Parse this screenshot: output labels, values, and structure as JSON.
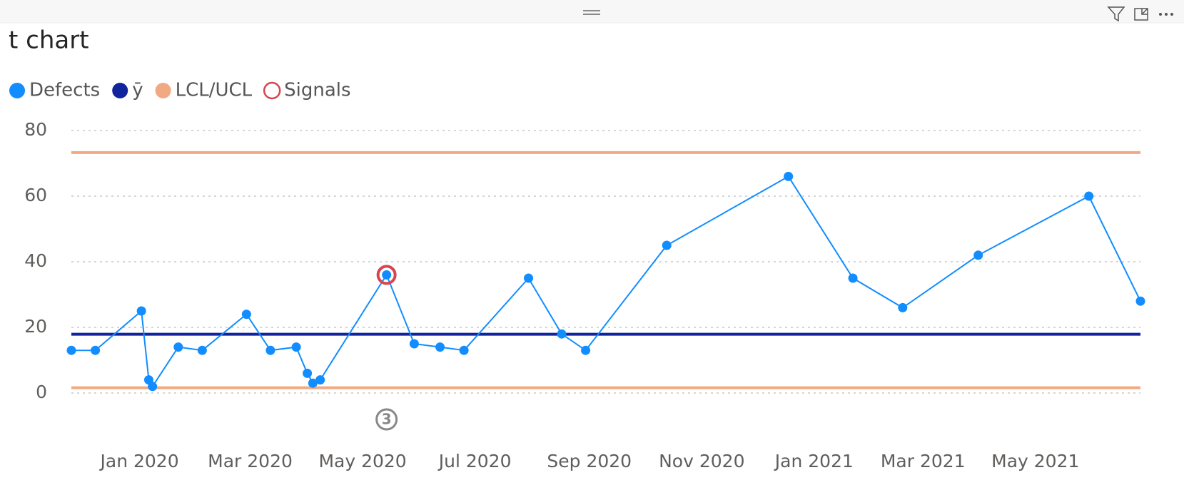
{
  "chart_data": {
    "type": "line",
    "title": "t chart",
    "x": [
      "2019-11-25",
      "2019-12-08",
      "2020-01-02",
      "2020-01-06",
      "2020-01-08",
      "2020-01-22",
      "2020-02-04",
      "2020-02-28",
      "2020-03-12",
      "2020-03-26",
      "2020-04-01",
      "2020-04-04",
      "2020-04-08",
      "2020-05-14",
      "2020-05-29",
      "2020-06-12",
      "2020-06-25",
      "2020-07-30",
      "2020-08-17",
      "2020-08-30",
      "2020-10-13",
      "2020-12-18",
      "2021-01-22",
      "2021-02-18",
      "2021-03-31",
      "2021-05-30",
      "2021-06-27"
    ],
    "series": [
      {
        "name": "Defects",
        "color": "#118DFF",
        "values": [
          13,
          13,
          25,
          4,
          2,
          14,
          13,
          24,
          13,
          14,
          6,
          3,
          4,
          36,
          15,
          14,
          13,
          35,
          18,
          13,
          45,
          66,
          35,
          26,
          42,
          60,
          28
        ]
      }
    ],
    "center_line": {
      "name": "ȳ",
      "color": "#12239E",
      "value": 17.9
    },
    "control_limits": {
      "name": "LCL/UCL",
      "color": "#F1A983",
      "values": [
        1.6,
        73.3
      ]
    },
    "signals": {
      "name": "Signals",
      "color": "#D64550",
      "x": [
        "2020-05-14"
      ],
      "values": [
        36
      ]
    },
    "annotations": [
      {
        "label": "3"
      }
    ],
    "xlim": [
      "2019-11-25",
      "2021-06-27"
    ],
    "xticks": [
      {
        "value": "2020-01-01",
        "label": "Jan 2020"
      },
      {
        "value": "2020-03-01",
        "label": "Mar 2020"
      },
      {
        "value": "2020-05-01",
        "label": "May 2020"
      },
      {
        "value": "2020-07-01",
        "label": "Jul 2020"
      },
      {
        "value": "2020-09-01",
        "label": "Sep 2020"
      },
      {
        "value": "2020-11-01",
        "label": "Nov 2020"
      },
      {
        "value": "2021-01-01",
        "label": "Jan 2021"
      },
      {
        "value": "2021-03-01",
        "label": "Mar 2021"
      },
      {
        "value": "2021-05-01",
        "label": "May 2021"
      }
    ],
    "ylim": [
      0,
      80
    ],
    "yticks": [
      0,
      20,
      40,
      60,
      80
    ],
    "grid": true
  }
}
